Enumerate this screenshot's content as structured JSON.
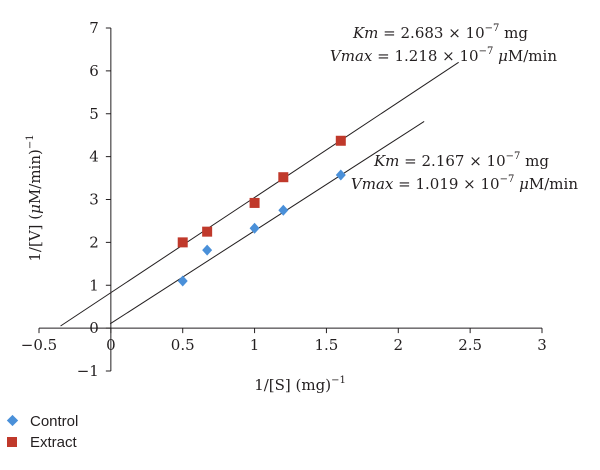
{
  "chart_data": {
    "type": "scatter",
    "title": "",
    "xlabel": {
      "base": "1/[S] (mg)",
      "sup": "−1"
    },
    "ylabel": {
      "base": "1/[V] (",
      "mu": "μ",
      "rest": "M/min)",
      "sup": "−1"
    },
    "xlim": [
      -0.5,
      3
    ],
    "ylim": [
      -1,
      7
    ],
    "x_ticks": [
      -0.5,
      0,
      0.5,
      1,
      1.5,
      2,
      2.5,
      3
    ],
    "x_tick_labels": [
      "−0.5",
      "0",
      "0.5",
      "1",
      "1.5",
      "2",
      "2.5",
      "3"
    ],
    "y_ticks": [
      -1,
      0,
      1,
      2,
      3,
      4,
      5,
      6,
      7
    ],
    "y_tick_labels": [
      "−1",
      "0",
      "1",
      "2",
      "3",
      "4",
      "5",
      "6",
      "7"
    ],
    "grid": false,
    "legend_position": "bottom-left",
    "series": [
      {
        "name": "Control",
        "color": "#4a90d9",
        "marker": "diamond",
        "x": [
          0.5,
          0.67,
          1.0,
          1.2,
          1.6
        ],
        "y": [
          1.1,
          1.82,
          2.33,
          2.75,
          3.57
        ],
        "trendline": {
          "x": [
            -0.005,
            2.18
          ],
          "y": [
            0.1,
            4.82
          ]
        }
      },
      {
        "name": "Extract",
        "color": "#c0392b",
        "marker": "square",
        "x": [
          0.5,
          0.67,
          1.0,
          1.2,
          1.6
        ],
        "y": [
          2.0,
          2.25,
          2.92,
          3.52,
          4.37
        ],
        "trendline": {
          "x": [
            -0.35,
            2.42
          ],
          "y": [
            0.05,
            6.2
          ]
        }
      }
    ],
    "annotations": [
      {
        "km": {
          "label": "Km",
          "text": " = 2.683 × 10",
          "exp": "−7",
          "unit": " mg"
        },
        "vmax": {
          "label": "Vmax",
          "text": " = 1.218 × 10",
          "exp": "−7",
          "mu": " μ",
          "unit": "M/min"
        }
      },
      {
        "km": {
          "label": "Km",
          "text": " = 2.167 × 10",
          "exp": "−7",
          "unit": " mg"
        },
        "vmax": {
          "label": "Vmax",
          "text": " = 1.019 × 10",
          "exp": "−7",
          "mu": " μ",
          "unit": "M/min"
        }
      }
    ]
  }
}
